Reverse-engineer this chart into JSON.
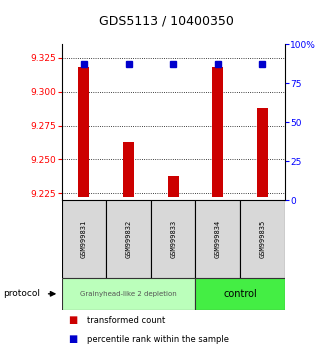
{
  "title": "GDS5113 / 10400350",
  "samples": [
    "GSM999831",
    "GSM999832",
    "GSM999833",
    "GSM999834",
    "GSM999835"
  ],
  "red_bar_values": [
    9.318,
    9.263,
    9.238,
    9.318,
    9.288
  ],
  "blue_square_values": [
    87,
    87,
    87,
    87,
    87
  ],
  "ylim_left": [
    9.22,
    9.335
  ],
  "ylim_right": [
    0,
    100
  ],
  "yticks_left": [
    9.225,
    9.25,
    9.275,
    9.3,
    9.325
  ],
  "yticks_right": [
    0,
    25,
    50,
    75,
    100
  ],
  "ytick_labels_right": [
    "0",
    "25",
    "50",
    "75",
    "100%"
  ],
  "bar_bottom": 9.222,
  "bar_color": "#cc0000",
  "square_color": "#0000cc",
  "group1_samples": [
    0,
    1,
    2
  ],
  "group2_samples": [
    3,
    4
  ],
  "group1_label": "Grainyhead-like 2 depletion",
  "group2_label": "control",
  "group1_color": "#bbffbb",
  "group2_color": "#44ee44",
  "protocol_label": "protocol",
  "legend_red_label": "transformed count",
  "legend_blue_label": "percentile rank within the sample",
  "bar_width": 0.25,
  "title_fontsize": 9,
  "tick_fontsize": 6.5,
  "label_fontsize": 7
}
